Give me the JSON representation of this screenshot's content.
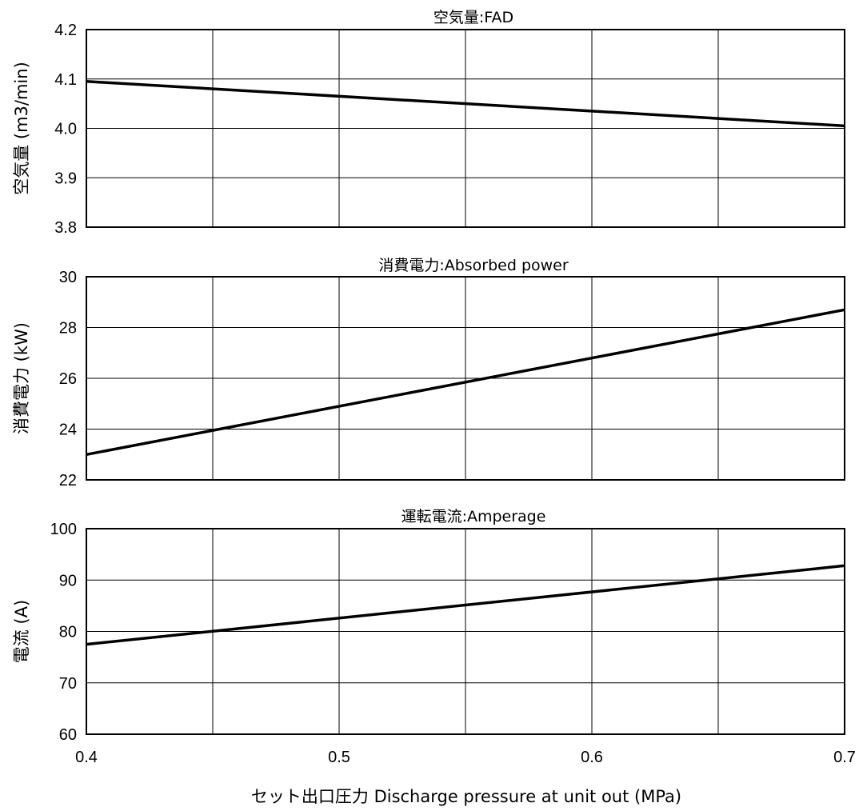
{
  "xlabel": "セット出口圧力 Discharge pressure at unit out (MPa)",
  "chart_data": [
    {
      "type": "line",
      "title": "空気量:FAD",
      "ylabel": "空気量 (m3/min)",
      "xlim": [
        0.4,
        0.7
      ],
      "ylim": [
        3.8,
        4.2
      ],
      "x_ticks": [
        "0.4",
        "0.5",
        "0.6",
        "0.7"
      ],
      "y_ticks": [
        "3.8",
        "3.9",
        "4.0",
        "4.1",
        "4.2"
      ],
      "x_grid": [
        0.4,
        0.45,
        0.5,
        0.55,
        0.6,
        0.65,
        0.7
      ],
      "grid": true,
      "x": [
        0.4,
        0.7
      ],
      "y": [
        4.095,
        4.005
      ]
    },
    {
      "type": "line",
      "title": "消費電力:Absorbed power",
      "ylabel": "消費電力 (kW)",
      "xlim": [
        0.4,
        0.7
      ],
      "ylim": [
        22,
        30
      ],
      "x_ticks": [
        "0.4",
        "0.5",
        "0.6",
        "0.7"
      ],
      "y_ticks": [
        "22",
        "24",
        "26",
        "28",
        "30"
      ],
      "x_grid": [
        0.4,
        0.45,
        0.5,
        0.55,
        0.6,
        0.65,
        0.7
      ],
      "grid": true,
      "x": [
        0.4,
        0.7
      ],
      "y": [
        23.0,
        28.7
      ]
    },
    {
      "type": "line",
      "title": "運転電流:Amperage",
      "ylabel": "電流 (A)",
      "xlim": [
        0.4,
        0.7
      ],
      "ylim": [
        60,
        100
      ],
      "x_ticks": [
        "0.4",
        "0.5",
        "0.6",
        "0.7"
      ],
      "y_ticks": [
        "60",
        "70",
        "80",
        "90",
        "100"
      ],
      "x_grid": [
        0.4,
        0.45,
        0.5,
        0.55,
        0.6,
        0.65,
        0.7
      ],
      "grid": true,
      "x": [
        0.4,
        0.7
      ],
      "y": [
        77.5,
        92.8
      ]
    }
  ]
}
